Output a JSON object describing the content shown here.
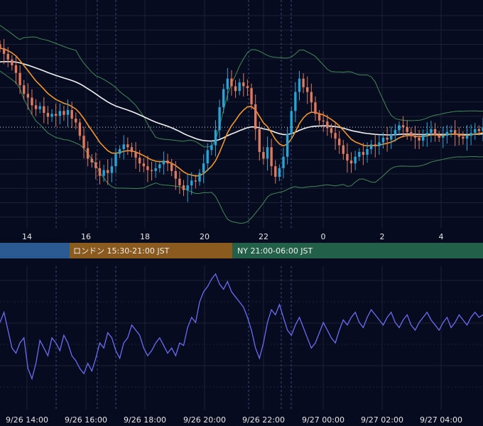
{
  "colors": {
    "background": "#070b1f",
    "grid": "#1c2236",
    "session_line": "#3b4a78",
    "bull_candle": "#22a7d8",
    "bear_candle": "#e07a5f",
    "bollinger": "#3f8a55",
    "ema": "#f0962a",
    "long_ma": "#f2f2f2",
    "oscillator": "#6a6cf0",
    "axis_text": "#e6e6e6",
    "tokyo": "#2b5a92",
    "london": "#8a5a1e",
    "ny": "#23604a"
  },
  "chart_data": [
    {
      "type": "candlestick",
      "x_ticks": [
        "14",
        "16",
        "18",
        "20",
        "22",
        "0",
        "2",
        "4"
      ],
      "sessions": [
        {
          "name": "tokyo",
          "label": ""
        },
        {
          "name": "london",
          "label": "ロンドン 15:30-21:00 JST"
        },
        {
          "name": "ny",
          "label": "NY 21:00-06:00 JST"
        }
      ],
      "close": [
        100.0,
        99.4,
        98.8,
        98.2,
        97.4,
        96.1,
        95.2,
        94.8,
        94.0,
        93.6,
        93.9,
        93.2,
        92.8,
        93.1,
        92.9,
        93.4,
        93.0,
        93.5,
        92.6,
        92.2,
        90.8,
        89.5,
        88.4,
        88.0,
        87.4,
        86.6,
        87.2,
        86.9,
        87.6,
        88.9,
        89.4,
        89.9,
        89.6,
        89.1,
        88.5,
        87.9,
        87.6,
        87.2,
        87.1,
        87.4,
        87.8,
        88.2,
        87.9,
        87.1,
        86.3,
        85.6,
        85.1,
        85.6,
        86.1,
        86.0,
        86.9,
        87.9,
        89.3,
        89.8,
        91.4,
        93.8,
        95.7,
        96.8,
        96.0,
        95.5,
        96.4,
        96.0,
        95.8,
        94.1,
        91.5,
        89.1,
        88.4,
        89.6,
        87.6,
        86.5,
        87.4,
        88.6,
        91.0,
        93.4,
        95.4,
        96.8,
        95.9,
        95.4,
        94.3,
        93.1,
        92.4,
        92.3,
        91.6,
        91.1,
        90.5,
        89.8,
        88.9,
        88.2,
        87.9,
        88.6,
        89.1,
        88.8,
        89.4,
        89.9,
        89.7,
        90.1,
        90.6,
        90.4,
        90.9,
        91.4,
        91.9,
        91.7,
        91.2,
        90.8,
        90.6,
        90.3,
        90.9,
        91.1,
        91.5,
        90.9,
        90.6,
        90.8,
        91.2,
        91.4,
        90.9,
        90.7,
        90.5,
        90.8,
        91.1,
        91.5,
        91.3,
        91.7
      ]
    },
    {
      "type": "line",
      "x_ticks": [
        "9/26 14:00",
        "9/26 16:00",
        "9/26 18:00",
        "9/26 20:00",
        "9/26 22:00",
        "9/27 00:00",
        "9/27 02:00",
        "9/27 04:00"
      ],
      "series": [
        {
          "values": [
            58,
            62,
            55,
            48,
            46,
            50,
            52,
            40,
            36,
            42,
            51,
            48,
            45,
            52,
            50,
            47,
            53,
            50,
            45,
            43,
            40,
            38,
            42,
            39,
            44,
            50,
            48,
            54,
            52,
            47,
            44,
            50,
            52,
            57,
            55,
            53,
            48,
            45,
            47,
            50,
            52,
            49,
            46,
            48,
            45,
            50,
            49,
            56,
            60,
            58,
            66,
            70,
            72,
            75,
            77,
            73,
            71,
            74,
            70,
            68,
            66,
            64,
            60,
            55,
            48,
            44,
            50,
            58,
            63,
            61,
            65,
            60,
            55,
            53,
            57,
            60,
            56,
            52,
            48,
            50,
            54,
            58,
            55,
            52,
            50,
            55,
            59,
            57,
            60,
            62,
            58,
            56,
            60,
            63,
            61,
            59,
            57,
            60,
            62,
            58,
            56,
            59,
            61,
            57,
            55,
            58,
            60,
            62,
            59,
            57,
            55,
            58,
            60,
            56,
            58,
            61,
            59,
            57,
            60,
            62,
            60,
            61
          ]
        }
      ]
    }
  ]
}
